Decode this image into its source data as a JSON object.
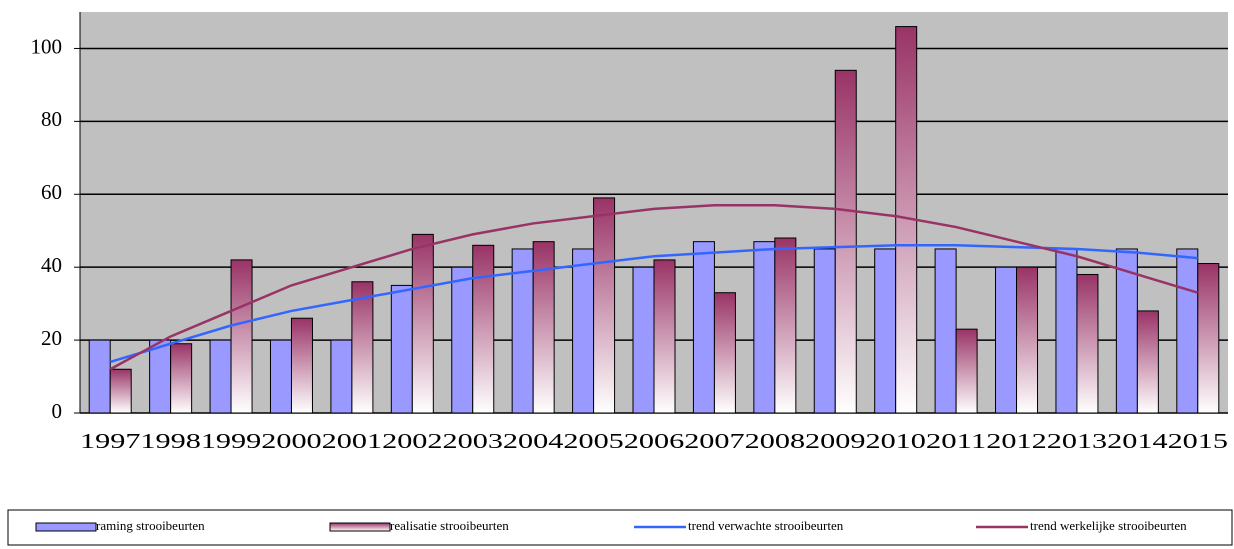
{
  "chart_data": {
    "type": "bar",
    "categories": [
      "1997",
      "1998",
      "1999",
      "2000",
      "2001",
      "2002",
      "2003",
      "2004",
      "2005",
      "2006",
      "2007",
      "2008",
      "2009",
      "2010",
      "2011",
      "2012",
      "2013",
      "2014",
      "2015"
    ],
    "series": [
      {
        "name": "raming strooibeurten",
        "type": "bar",
        "color": "#9999ff",
        "values": [
          20,
          20,
          20,
          20,
          20,
          35,
          40,
          45,
          45,
          40,
          47,
          47,
          45,
          45,
          45,
          40,
          45,
          45,
          45
        ]
      },
      {
        "name": "realisatie strooibeurten",
        "type": "bar",
        "color": "#993366",
        "values": [
          12,
          19,
          42,
          26,
          36,
          49,
          46,
          47,
          59,
          42,
          33,
          48,
          94,
          106,
          23,
          40,
          38,
          28,
          41
        ]
      },
      {
        "name": "trend verwachte strooibeurten",
        "type": "line",
        "color": "#3366ff",
        "values": [
          14,
          19,
          24,
          28,
          31,
          34,
          37,
          39,
          41,
          43,
          44,
          45,
          45.5,
          46,
          46,
          45.5,
          45,
          44,
          42.5
        ]
      },
      {
        "name": "trend werkelijke strooibeurten",
        "type": "line",
        "color": "#993366",
        "values": [
          12,
          21,
          28,
          35,
          40,
          45,
          49,
          52,
          54,
          56,
          57,
          57,
          56,
          54,
          51,
          47,
          43,
          38,
          33
        ]
      }
    ],
    "ylim": [
      0,
      110
    ],
    "yticks": [
      0,
      20,
      40,
      60,
      80,
      100
    ],
    "grid": true,
    "legend": "bottom"
  }
}
